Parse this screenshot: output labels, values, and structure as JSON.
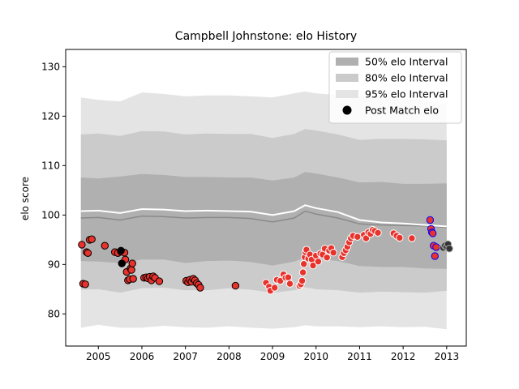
{
  "chart_data": {
    "type": "scatter",
    "title": "Campbell Johnstone: elo History",
    "xlabel": "",
    "ylabel": "elo score",
    "xlim": [
      2004.25,
      2013.45
    ],
    "ylim": [
      73.5,
      133.5
    ],
    "x_ticks": [
      2005,
      2006,
      2007,
      2008,
      2009,
      2010,
      2011,
      2012,
      2013
    ],
    "x_tick_labels": [
      "2005",
      "2006",
      "2007",
      "2008",
      "2009",
      "2010",
      "2011",
      "2012",
      "2013"
    ],
    "y_ticks": [
      80,
      90,
      100,
      110,
      120,
      130
    ],
    "y_tick_labels": [
      "80",
      "90",
      "100",
      "110",
      "120",
      "130"
    ],
    "grid": false,
    "legend": {
      "placement": "top-right",
      "entries": [
        {
          "label": "50% elo Interval",
          "color": "#b0b0b0"
        },
        {
          "label": "80% elo Interval",
          "color": "#cbcbcb"
        },
        {
          "label": "95% elo Interval",
          "color": "#e4e4e4"
        },
        {
          "label": "Post Match elo",
          "color": "#000000"
        }
      ]
    },
    "bands": {
      "x": [
        2004.6,
        2005.0,
        2005.5,
        2006.0,
        2006.5,
        2007.0,
        2007.5,
        2008.0,
        2008.5,
        2009.0,
        2009.5,
        2009.75,
        2010.0,
        2010.5,
        2011.0,
        2011.5,
        2012.0,
        2012.5,
        2013.0
      ],
      "mean": [
        99.4,
        99.5,
        99.0,
        99.8,
        99.7,
        99.4,
        99.5,
        99.5,
        99.3,
        98.6,
        99.4,
        100.8,
        100.2,
        99.4,
        98.2,
        98.0,
        97.9,
        97.8,
        97.5
      ],
      "p95_lo": [
        77.2,
        77.8,
        77.2,
        77.2,
        77.6,
        77.3,
        77.2,
        77.5,
        77.2,
        77.0,
        77.3,
        77.7,
        77.5,
        77.5,
        77.3,
        77.5,
        77.3,
        77.4,
        76.9
      ],
      "p95_hi": [
        123.8,
        123.3,
        123.0,
        124.8,
        124.5,
        124.0,
        124.2,
        124.2,
        124.0,
        123.8,
        124.6,
        125.0,
        124.6,
        124.3,
        124.0,
        124.2,
        123.3,
        123.3,
        122.4
      ],
      "p80_lo": [
        84.9,
        85.0,
        84.3,
        85.2,
        85.3,
        84.8,
        84.8,
        85.2,
        84.9,
        84.3,
        84.8,
        85.4,
        85.0,
        84.8,
        84.3,
        84.5,
        84.4,
        84.3,
        84.7
      ],
      "p80_hi": [
        116.3,
        116.5,
        116.0,
        117.0,
        116.9,
        116.3,
        116.5,
        116.4,
        116.4,
        115.6,
        116.4,
        117.4,
        117.1,
        116.3,
        115.2,
        115.4,
        115.4,
        115.3,
        115.1
      ],
      "p50_lo": [
        90.7,
        90.6,
        90.3,
        91.0,
        91.0,
        90.3,
        90.7,
        90.8,
        90.5,
        89.8,
        90.6,
        91.4,
        91.2,
        90.7,
        89.7,
        89.5,
        89.5,
        89.2,
        89.1
      ],
      "p50_hi": [
        107.6,
        107.4,
        107.8,
        108.3,
        108.1,
        107.7,
        107.7,
        107.6,
        107.6,
        107.0,
        107.6,
        108.7,
        108.4,
        107.6,
        106.6,
        106.7,
        106.3,
        106.3,
        106.4
      ],
      "grey_line": [
        99.4,
        99.5,
        99.0,
        99.8,
        99.7,
        99.4,
        99.5,
        99.5,
        99.3,
        98.6,
        99.4,
        100.8,
        100.2,
        99.4,
        98.2,
        98.0,
        97.9,
        97.8,
        97.5
      ],
      "white_line": [
        100.8,
        100.9,
        100.4,
        101.2,
        101.1,
        100.8,
        100.9,
        100.8,
        100.7,
        100.0,
        100.8,
        102.0,
        101.4,
        100.6,
        99.0,
        98.5,
        98.3,
        98.0,
        97.7
      ]
    },
    "series": [
      {
        "color": "#e8322c",
        "edge": "#000000",
        "points": [
          [
            2004.62,
            94.0
          ],
          [
            2004.65,
            86.1
          ],
          [
            2004.7,
            86.0
          ],
          [
            2004.73,
            92.5
          ],
          [
            2004.76,
            92.3
          ],
          [
            2004.8,
            95.0
          ],
          [
            2004.85,
            95.1
          ],
          [
            2005.15,
            93.8
          ],
          [
            2005.38,
            92.5
          ],
          [
            2005.45,
            92.3
          ],
          [
            2005.52,
            92.6
          ],
          [
            2005.6,
            92.4
          ],
          [
            2005.62,
            91.0
          ],
          [
            2005.65,
            88.5
          ],
          [
            2005.68,
            86.8
          ],
          [
            2005.72,
            87.0
          ],
          [
            2005.74,
            89.2
          ],
          [
            2005.76,
            88.9
          ],
          [
            2005.78,
            90.2
          ],
          [
            2005.8,
            87.1
          ],
          [
            2006.05,
            87.3
          ],
          [
            2006.1,
            87.4
          ],
          [
            2006.14,
            87.2
          ],
          [
            2006.18,
            87.5
          ],
          [
            2006.22,
            86.8
          ],
          [
            2006.26,
            87.6
          ],
          [
            2006.3,
            87.3
          ],
          [
            2006.4,
            86.6
          ],
          [
            2007.02,
            86.7
          ],
          [
            2007.06,
            86.4
          ],
          [
            2007.1,
            86.9
          ],
          [
            2007.14,
            86.5
          ],
          [
            2007.18,
            87.1
          ],
          [
            2007.22,
            86.8
          ],
          [
            2007.26,
            86.2
          ],
          [
            2007.3,
            85.9
          ],
          [
            2007.34,
            85.3
          ],
          [
            2008.15,
            85.7
          ]
        ]
      },
      {
        "color": "#e8322c",
        "edge": "#ffffff",
        "points": [
          [
            2008.85,
            86.3
          ],
          [
            2008.92,
            85.5
          ],
          [
            2008.95,
            84.7
          ],
          [
            2009.05,
            85.3
          ],
          [
            2009.1,
            86.9
          ],
          [
            2009.18,
            86.7
          ],
          [
            2009.25,
            88.0
          ],
          [
            2009.3,
            87.3
          ],
          [
            2009.36,
            87.4
          ],
          [
            2009.4,
            86.1
          ],
          [
            2009.62,
            85.7
          ],
          [
            2009.65,
            86.0
          ],
          [
            2009.68,
            86.7
          ],
          [
            2009.7,
            88.4
          ],
          [
            2009.72,
            90.1
          ],
          [
            2009.74,
            91.5
          ],
          [
            2009.76,
            92.5
          ],
          [
            2009.78,
            93.0
          ],
          [
            2009.82,
            91.2
          ],
          [
            2009.86,
            92.0
          ],
          [
            2009.9,
            91.0
          ],
          [
            2009.93,
            89.8
          ],
          [
            2010.0,
            91.8
          ],
          [
            2010.05,
            90.6
          ],
          [
            2010.1,
            92.2
          ],
          [
            2010.15,
            92.0
          ],
          [
            2010.2,
            93.2
          ],
          [
            2010.25,
            91.4
          ],
          [
            2010.3,
            92.8
          ],
          [
            2010.35,
            93.3
          ],
          [
            2010.4,
            92.4
          ],
          [
            2010.6,
            91.5
          ],
          [
            2010.64,
            92.3
          ],
          [
            2010.68,
            92.9
          ],
          [
            2010.72,
            93.6
          ],
          [
            2010.76,
            94.5
          ],
          [
            2010.8,
            95.3
          ],
          [
            2010.85,
            95.8
          ],
          [
            2010.95,
            95.6
          ],
          [
            2011.1,
            96.0
          ],
          [
            2011.15,
            95.3
          ],
          [
            2011.2,
            96.5
          ],
          [
            2011.25,
            96.2
          ],
          [
            2011.3,
            97.0
          ],
          [
            2011.35,
            96.8
          ],
          [
            2011.42,
            96.4
          ],
          [
            2011.78,
            96.3
          ],
          [
            2011.85,
            95.8
          ],
          [
            2011.92,
            95.4
          ],
          [
            2012.2,
            95.3
          ]
        ]
      },
      {
        "color": "#e8322c",
        "edge": "#0000ff",
        "points": [
          [
            2012.62,
            99.0
          ],
          [
            2012.64,
            97.2
          ],
          [
            2012.66,
            96.5
          ],
          [
            2012.68,
            96.3
          ],
          [
            2012.7,
            93.8
          ],
          [
            2012.73,
            91.7
          ],
          [
            2012.76,
            93.5
          ]
        ]
      },
      {
        "color": "#000000",
        "edge": "#000000",
        "points": [
          [
            2005.52,
            92.8
          ],
          [
            2005.54,
            90.2
          ]
        ]
      },
      {
        "color": "#333333",
        "edge": "#aaaaaa",
        "points": [
          [
            2012.92,
            93.4
          ],
          [
            2012.96,
            93.8
          ],
          [
            2013.0,
            93.6
          ],
          [
            2013.03,
            94.1
          ],
          [
            2013.06,
            93.2
          ]
        ]
      }
    ]
  }
}
